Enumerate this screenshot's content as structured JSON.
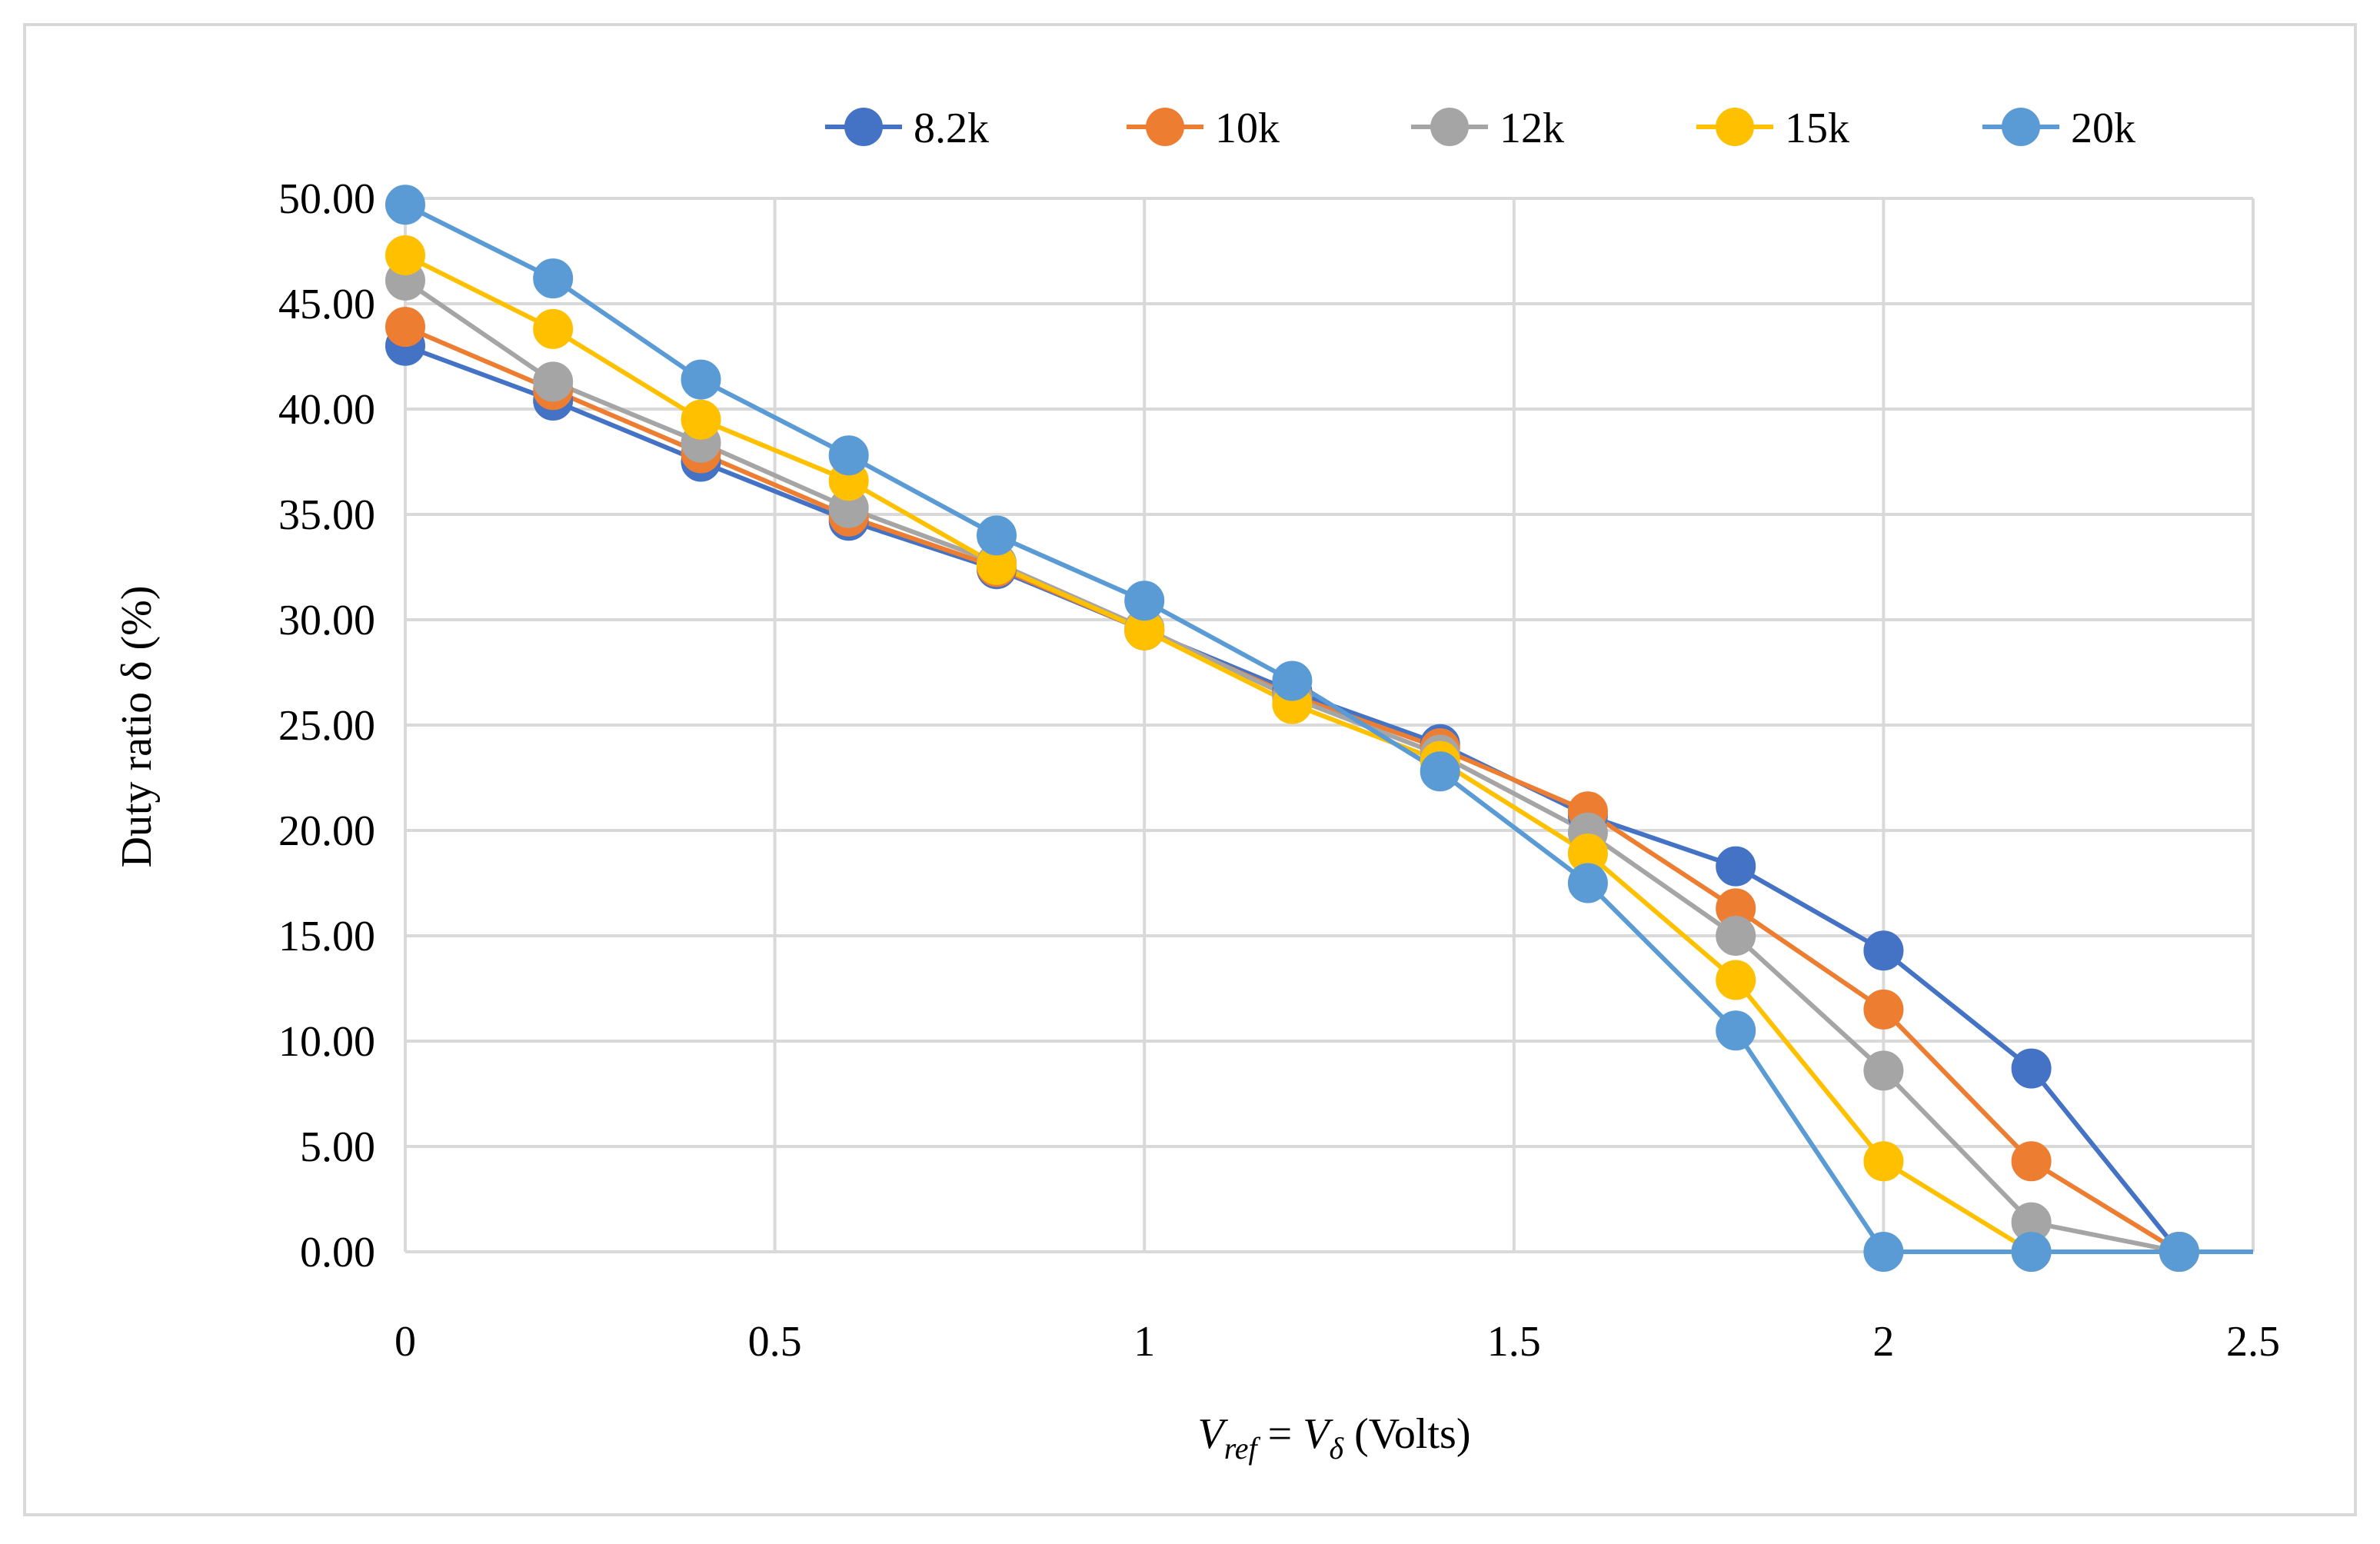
{
  "chart_data": {
    "type": "line",
    "title": "",
    "xlabel": {
      "italic_main": "V",
      "italic_sub": "ref",
      "equals": " = ",
      "italic_main2": "V",
      "italic_sub2": "δ",
      "suffix": " (Volts)"
    },
    "ylabel": "Duty ratio δ (%)",
    "xlim": [
      0,
      2.5
    ],
    "ylim": [
      0,
      50
    ],
    "xticks": [
      0,
      0.5,
      1,
      1.5,
      2,
      2.5
    ],
    "xtick_labels": [
      "0",
      "0.5",
      "1",
      "1.5",
      "2",
      "2.5"
    ],
    "yticks": [
      0,
      5,
      10,
      15,
      20,
      25,
      30,
      35,
      40,
      45,
      50
    ],
    "ytick_labels": [
      "0.00",
      "5.00",
      "10.00",
      "15.00",
      "20.00",
      "25.00",
      "30.00",
      "35.00",
      "40.00",
      "45.00",
      "50.00"
    ],
    "grid": true,
    "legend_position": "top",
    "x": [
      0,
      0.2,
      0.4,
      0.6,
      0.8,
      1.0,
      1.2,
      1.4,
      1.6,
      1.8,
      2.0,
      2.2,
      2.4,
      2.5
    ],
    "series": [
      {
        "name": "8.2k",
        "color": "#4472C4",
        "values": [
          43.0,
          40.4,
          37.5,
          34.7,
          32.4,
          29.5,
          26.6,
          24.1,
          20.7,
          18.3,
          14.3,
          8.7,
          0.0,
          0.0
        ]
      },
      {
        "name": "10k",
        "color": "#ED7D31",
        "values": [
          43.9,
          40.9,
          37.9,
          34.9,
          32.5,
          29.5,
          26.4,
          23.9,
          20.9,
          16.3,
          11.5,
          4.3,
          0.0,
          0.0
        ]
      },
      {
        "name": "12k",
        "color": "#A5A5A5",
        "values": [
          46.1,
          41.3,
          38.4,
          35.3,
          32.7,
          29.6,
          26.3,
          23.6,
          19.9,
          15.0,
          8.6,
          1.4,
          0.0,
          0.0
        ]
      },
      {
        "name": "15k",
        "color": "#FFC000",
        "values": [
          47.3,
          43.8,
          39.5,
          36.6,
          32.6,
          29.5,
          26.0,
          23.3,
          18.9,
          12.9,
          4.3,
          0.0,
          0.0,
          0.0
        ]
      },
      {
        "name": "20k",
        "color": "#5B9BD5",
        "values": [
          49.7,
          46.2,
          41.4,
          37.8,
          34.0,
          30.9,
          27.1,
          22.8,
          17.5,
          10.5,
          0.0,
          0.0,
          0.0,
          0.0
        ]
      }
    ]
  }
}
